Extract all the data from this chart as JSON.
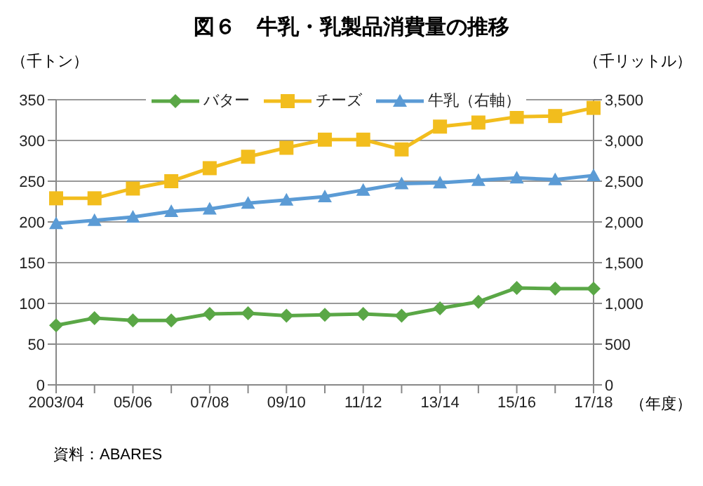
{
  "chart_data": {
    "type": "line",
    "title": "図６　牛乳・乳製品消費量の推移",
    "ylabel": "（千トン）",
    "y2label": "（千リットル）",
    "xlabel": "（年度）",
    "annotations": [
      "資料：ABARES"
    ],
    "categories": [
      "2003/04",
      null,
      "05/06",
      null,
      "07/08",
      null,
      "09/10",
      null,
      "11/12",
      null,
      "13/14",
      null,
      "15/16",
      null,
      "17/18"
    ],
    "series": [
      {
        "name": "バター",
        "color": "#5aa746",
        "marker": "diamond",
        "values": [
          73,
          82,
          79,
          79,
          87,
          88,
          85,
          86,
          87,
          85,
          94,
          102,
          119,
          118,
          118
        ]
      },
      {
        "name": "チーズ",
        "color": "#f2bd1d",
        "marker": "square",
        "values": [
          229,
          229,
          241,
          250,
          266,
          280,
          291,
          301,
          301,
          289,
          317,
          322,
          329,
          330,
          340
        ]
      },
      {
        "name": "牛乳（右軸）",
        "color": "#5b9bd5",
        "marker": "triangle",
        "axis": "y2",
        "values": [
          1980,
          2020,
          2060,
          2130,
          2160,
          2230,
          2270,
          2310,
          2390,
          2470,
          2480,
          2510,
          2540,
          2520,
          2570
        ]
      }
    ],
    "ylim": [
      0,
      350
    ],
    "yticks": [
      0,
      50,
      100,
      150,
      200,
      250,
      300,
      350
    ],
    "y2lim": [
      0,
      3500
    ],
    "y2ticks": [
      0,
      500,
      {
        "value": 1000,
        "label": "1,000"
      },
      {
        "value": 1500,
        "label": "1,500"
      },
      {
        "value": 2000,
        "label": "2,000"
      },
      {
        "value": 2500,
        "label": "2,500"
      },
      {
        "value": 3000,
        "label": "3,000"
      },
      {
        "value": 3500,
        "label": "3,500"
      }
    ],
    "grid": "y",
    "legend": "top"
  }
}
